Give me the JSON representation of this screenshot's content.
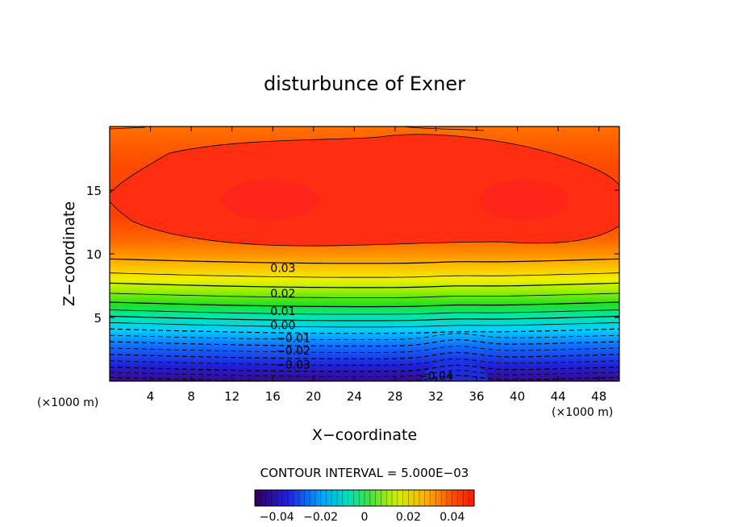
{
  "chart_data": {
    "type": "contour",
    "title": "disturbunce of Exner",
    "xlabel": "X−coordinate",
    "ylabel": "Z−coordinate",
    "x_unit_left": "(×1000 m)",
    "x_unit_right": "(×1000 m)",
    "xlim": [
      0,
      50
    ],
    "ylim": [
      0,
      20
    ],
    "x_ticks": [
      4,
      8,
      12,
      16,
      20,
      24,
      28,
      32,
      36,
      40,
      44,
      48
    ],
    "y_ticks": [
      5,
      10,
      15
    ],
    "contour_interval_text": "CONTOUR INTERVAL = 5.000E−03",
    "contour_labels": [
      {
        "text": "0.03",
        "x": 17,
        "z": 8.9
      },
      {
        "text": "0.02",
        "x": 17,
        "z": 6.9
      },
      {
        "text": "0.01",
        "x": 17,
        "z": 5.5
      },
      {
        "text": "0.00",
        "x": 17,
        "z": 4.4
      },
      {
        "text": "−0.01",
        "x": 18,
        "z": 3.4
      },
      {
        "text": "−0.02",
        "x": 18,
        "z": 2.4
      },
      {
        "text": "−0.03",
        "x": 18,
        "z": 1.3
      },
      {
        "text": "−0.04",
        "x": 32,
        "z": 0.4
      }
    ],
    "colorbar": {
      "min": -0.05,
      "max": 0.05,
      "ticks": [
        "−0.04",
        "−0.02",
        "0",
        "0.02",
        "0.04"
      ],
      "tick_values": [
        -0.04,
        -0.02,
        0,
        0.02,
        0.04
      ]
    },
    "grid": false,
    "field_description_levels": [
      -0.045,
      0.045
    ]
  },
  "colors": {
    "low": "#1a0a7a",
    "mid_low": "#00c8ff",
    "mid": "#20e040",
    "mid_high": "#ffe000",
    "high": "#ff2a10"
  }
}
